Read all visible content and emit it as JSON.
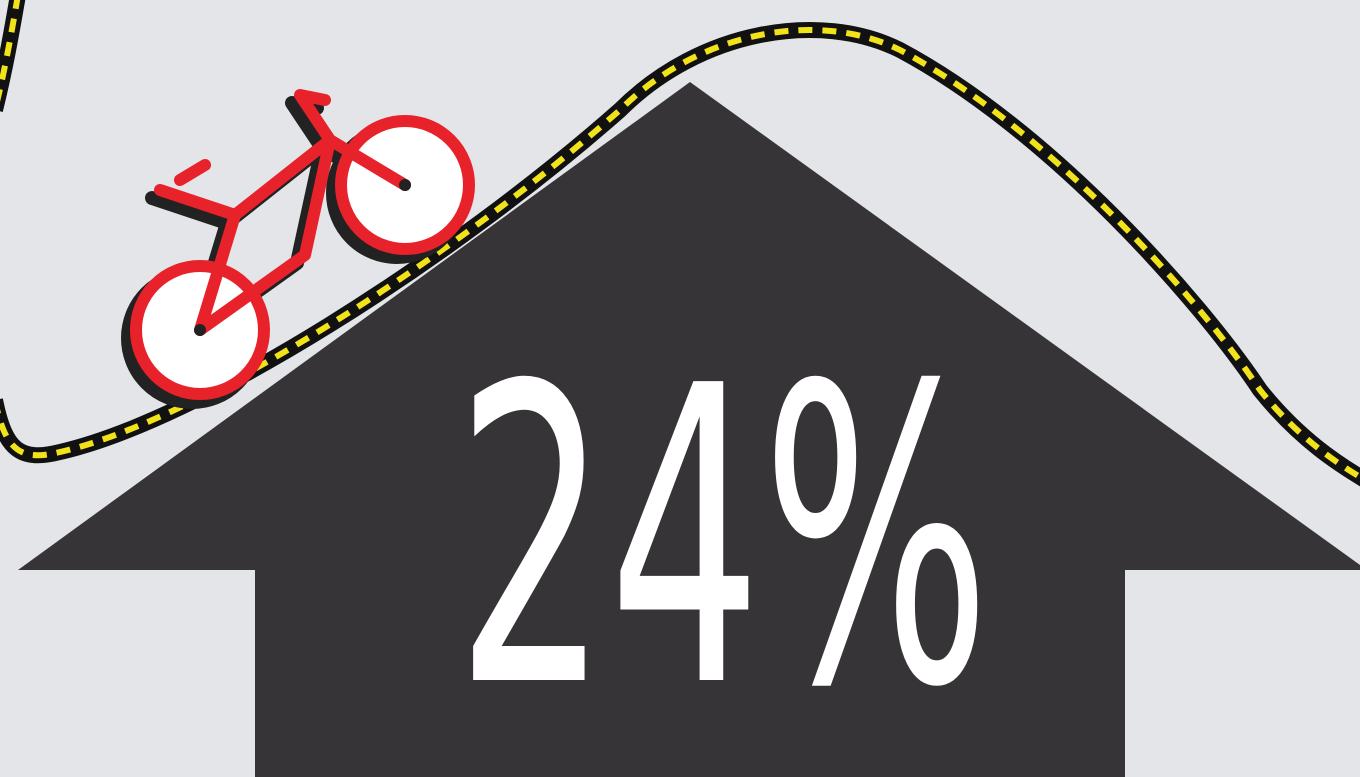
{
  "stat": {
    "value": "24%"
  }
}
